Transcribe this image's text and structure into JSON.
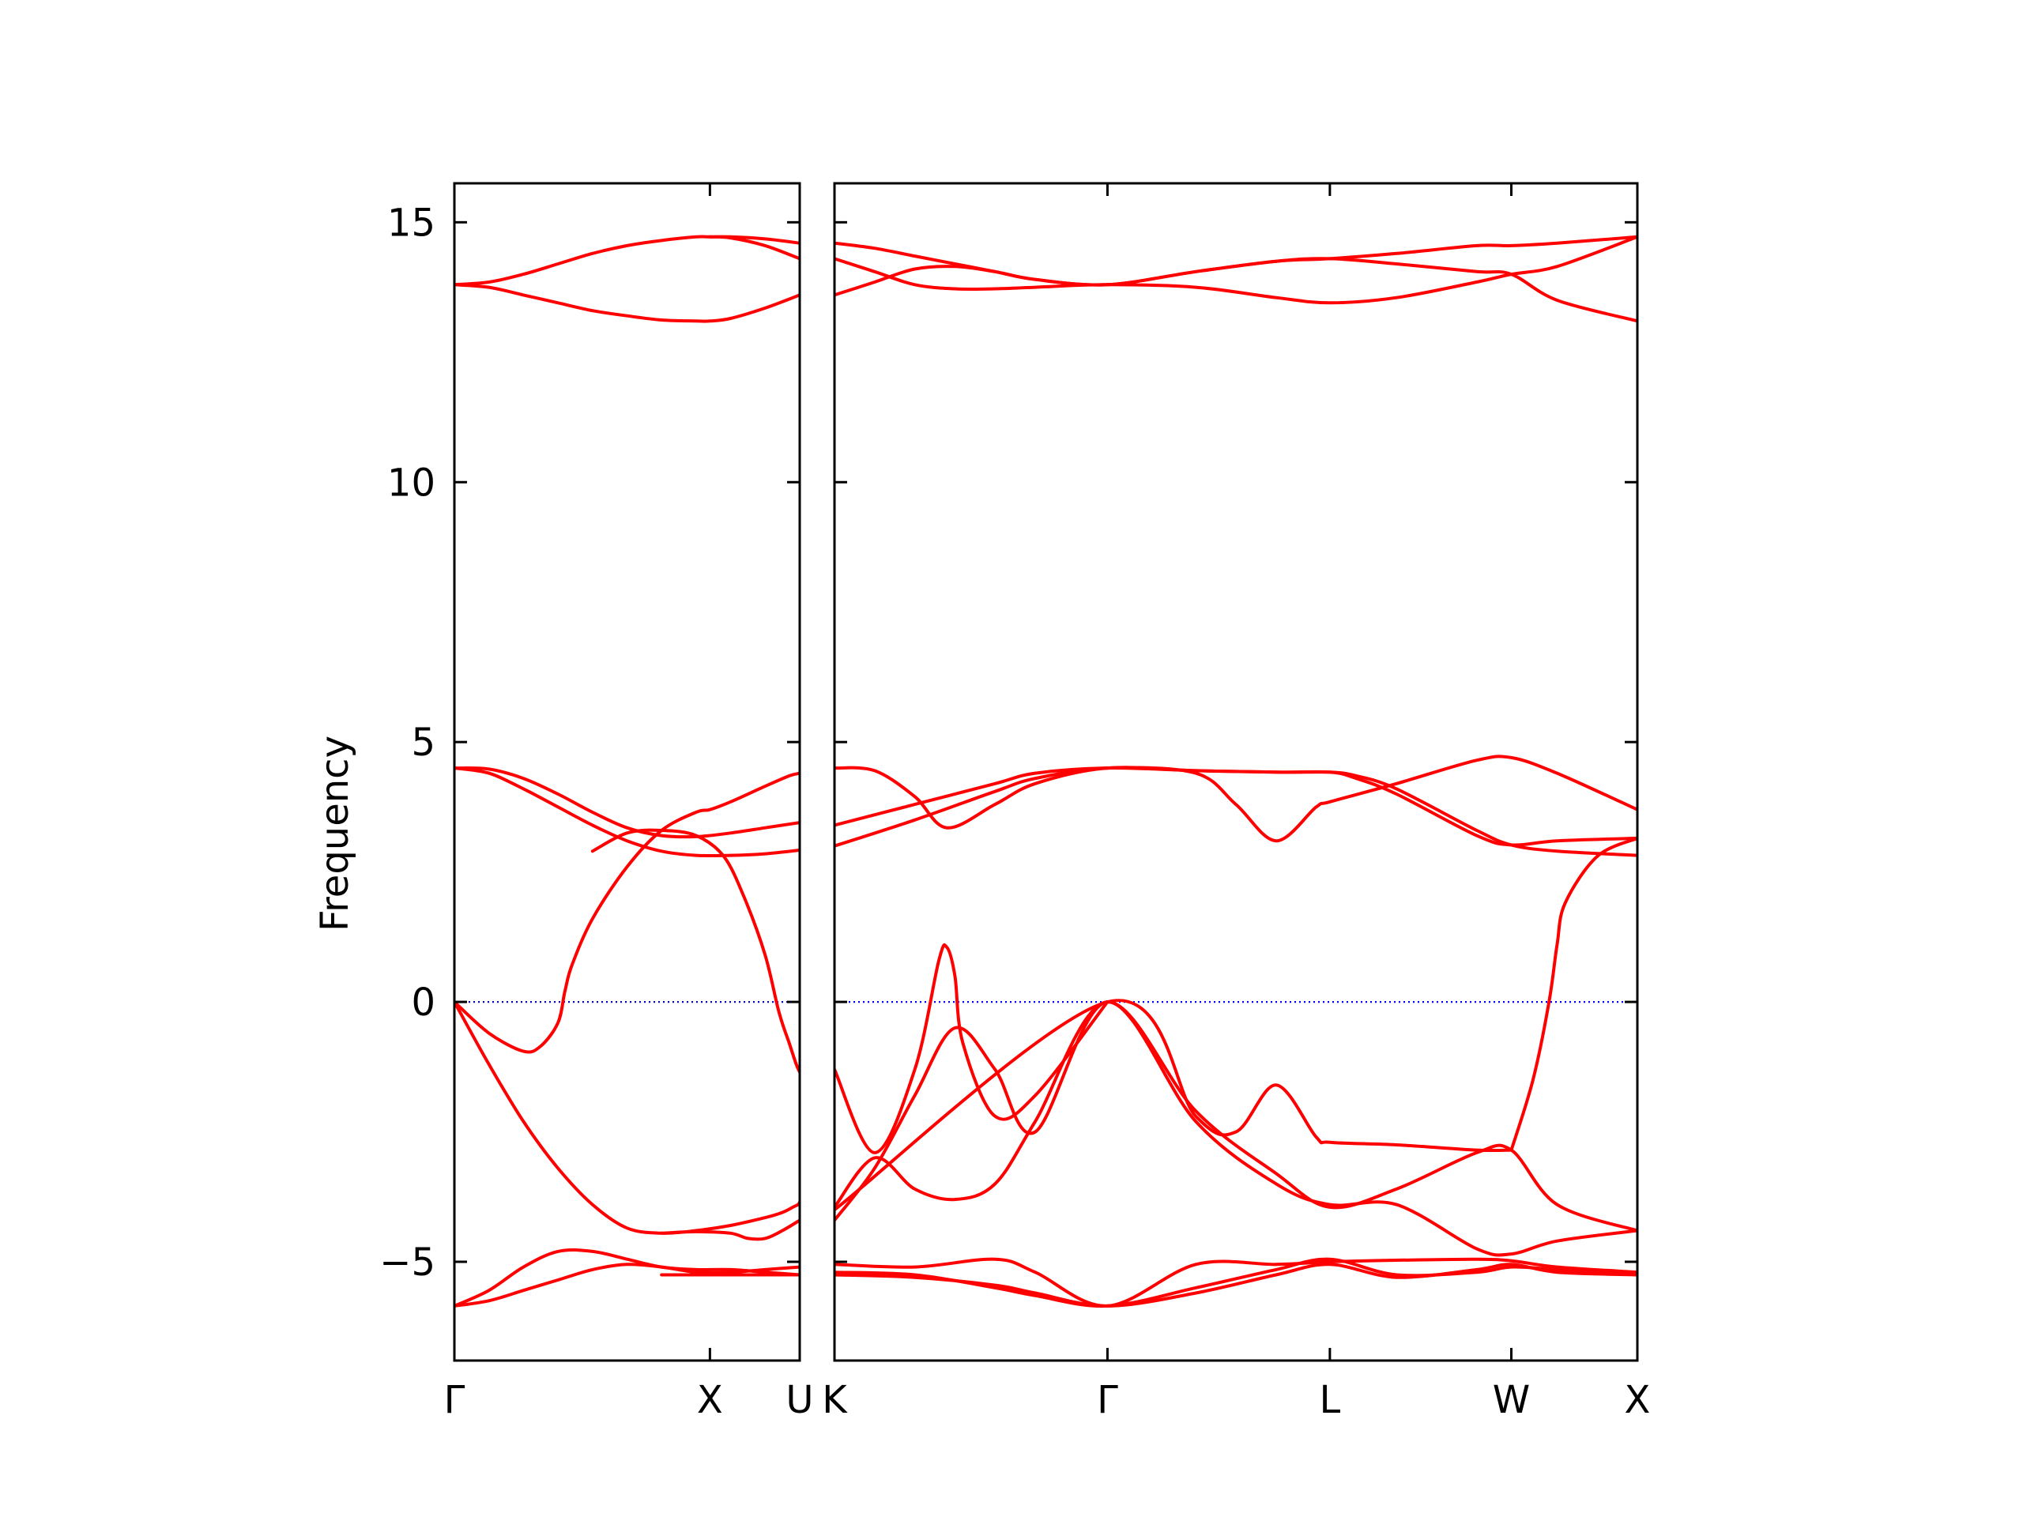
{
  "chart_data": {
    "type": "line",
    "title": "",
    "ylabel": "Frequency",
    "xlabel": "",
    "ylim": [
      -6.9,
      15.75
    ],
    "yticks": [
      -5,
      0,
      5,
      10,
      15
    ],
    "ytick_labels": [
      "−5",
      "0",
      "5",
      "10",
      "15"
    ],
    "grid": false,
    "legend": "none",
    "zero_line": {
      "y": 0,
      "style": "dotted",
      "color": "#0000ff"
    },
    "line_color": "#ff0000",
    "panels": [
      {
        "name": "left",
        "xlim": [
          0,
          1
        ],
        "high_symmetry_points": [
          {
            "label": "Γ",
            "x": 0
          },
          {
            "label": "X",
            "x": 0.74
          },
          {
            "label": "U",
            "x": 1
          }
        ],
        "bands": [
          {
            "x": [
              0,
              0.1,
              0.2,
              0.3,
              0.4,
              0.5,
              0.6,
              0.7,
              0.74,
              0.8,
              0.9,
              1.0
            ],
            "y": [
              13.8,
              13.85,
              14.0,
              14.2,
              14.4,
              14.55,
              14.65,
              14.72,
              14.72,
              14.72,
              14.68,
              14.6
            ]
          },
          {
            "x": [
              0,
              0.1,
              0.2,
              0.3,
              0.4,
              0.5,
              0.6,
              0.7,
              0.74,
              0.8,
              0.9,
              1.0
            ],
            "y": [
              13.8,
              13.75,
              13.6,
              13.45,
              13.3,
              13.2,
              13.12,
              13.1,
              13.1,
              13.15,
              13.35,
              13.6
            ]
          },
          {
            "x": [
              0.74,
              0.8,
              0.9,
              1.0
            ],
            "y": [
              14.72,
              14.7,
              14.55,
              14.3
            ]
          },
          {
            "x": [
              0,
              0.1,
              0.2,
              0.3,
              0.4,
              0.5,
              0.6,
              0.7,
              0.8,
              0.9,
              1.0
            ],
            "y": [
              4.5,
              4.48,
              4.3,
              4.0,
              3.65,
              3.35,
              3.2,
              3.18,
              3.25,
              3.35,
              3.45
            ]
          },
          {
            "x": [
              0,
              0.1,
              0.2,
              0.3,
              0.4,
              0.5,
              0.6,
              0.7,
              0.8,
              0.9,
              1.0
            ],
            "y": [
              4.5,
              4.4,
              4.1,
              3.75,
              3.4,
              3.1,
              2.9,
              2.82,
              2.82,
              2.85,
              2.92
            ]
          },
          {
            "x": [
              0,
              0.1,
              0.2,
              0.25,
              0.3,
              0.32,
              0.34,
              0.4,
              0.5,
              0.6,
              0.7,
              0.74,
              0.8,
              0.9,
              0.97,
              1.0
            ],
            "y": [
              0,
              -0.6,
              -0.95,
              -0.85,
              -0.4,
              0.2,
              0.7,
              1.6,
              2.6,
              3.3,
              3.65,
              3.7,
              3.85,
              4.15,
              4.35,
              4.4
            ]
          },
          {
            "x": [
              0,
              0.1,
              0.2,
              0.3,
              0.4,
              0.5,
              0.6,
              0.7,
              0.8,
              0.9,
              0.95,
              0.98,
              0.995,
              1.0
            ],
            "y": [
              0,
              -1.2,
              -2.3,
              -3.2,
              -3.9,
              -4.35,
              -4.45,
              -4.4,
              -4.3,
              -4.15,
              -4.05,
              -3.95,
              -3.9,
              -3.85
            ]
          },
          {
            "x": [
              0.4,
              0.5,
              0.6,
              0.7,
              0.78,
              0.84,
              0.9,
              0.94,
              0.97,
              0.99,
              1.0
            ],
            "y": [
              2.9,
              3.25,
              3.3,
              3.2,
              2.8,
              2.0,
              0.9,
              -0.2,
              -0.8,
              -1.2,
              -1.35
            ]
          },
          {
            "x": [
              0.6,
              0.7,
              0.8,
              0.85,
              0.9,
              0.95,
              1.0
            ],
            "y": [
              -4.45,
              -4.42,
              -4.45,
              -4.55,
              -4.55,
              -4.4,
              -4.2
            ]
          },
          {
            "x": [
              0,
              0.1,
              0.2,
              0.3,
              0.4,
              0.5,
              0.6,
              0.7,
              0.8,
              0.9,
              1.0
            ],
            "y": [
              -5.85,
              -5.55,
              -5.1,
              -4.8,
              -4.8,
              -4.95,
              -5.1,
              -5.15,
              -5.15,
              -5.2,
              -5.25
            ]
          },
          {
            "x": [
              0,
              0.1,
              0.2,
              0.3,
              0.4,
              0.5,
              0.6,
              0.7,
              0.8,
              0.9,
              1.0
            ],
            "y": [
              -5.85,
              -5.75,
              -5.55,
              -5.35,
              -5.15,
              -5.05,
              -5.1,
              -5.2,
              -5.2,
              -5.15,
              -5.1
            ]
          },
          {
            "x": [
              0.6,
              0.7,
              0.8,
              0.9,
              1.0
            ],
            "y": [
              -5.25,
              -5.25,
              -5.25,
              -5.25,
              -5.25
            ]
          }
        ]
      },
      {
        "name": "right",
        "xlim": [
          0,
          1
        ],
        "high_symmetry_points": [
          {
            "label": "K",
            "x": 0
          },
          {
            "label": "Γ",
            "x": 0.34
          },
          {
            "label": "L",
            "x": 0.617
          },
          {
            "label": "W",
            "x": 0.843
          },
          {
            "label": "X",
            "x": 1
          }
        ],
        "bands": [
          {
            "x": [
              0,
              0.05,
              0.1,
              0.15,
              0.2,
              0.25,
              0.34,
              0.45,
              0.55,
              0.617,
              0.7,
              0.8,
              0.843,
              0.9,
              1.0
            ],
            "y": [
              14.6,
              14.5,
              14.35,
              14.2,
              14.05,
              13.9,
              13.8,
              14.05,
              14.25,
              14.3,
              14.4,
              14.55,
              14.55,
              14.6,
              14.72
            ]
          },
          {
            "x": [
              0,
              0.05,
              0.1,
              0.15,
              0.2,
              0.25,
              0.34,
              0.45,
              0.55,
              0.617,
              0.7,
              0.8,
              0.843,
              0.9,
              1.0
            ],
            "y": [
              14.3,
              14.05,
              13.8,
              13.72,
              13.72,
              13.75,
              13.8,
              13.75,
              13.55,
              13.45,
              13.55,
              13.85,
              14.0,
              14.15,
              14.72
            ]
          },
          {
            "x": [
              0,
              0.05,
              0.1,
              0.15,
              0.2,
              0.25,
              0.34,
              0.45,
              0.55,
              0.617,
              0.7,
              0.8,
              0.843,
              0.9,
              1.0
            ],
            "y": [
              13.6,
              13.85,
              14.1,
              14.15,
              14.05,
              13.9,
              13.8,
              14.05,
              14.25,
              14.3,
              14.2,
              14.05,
              14.0,
              13.5,
              13.1
            ]
          },
          {
            "x": [
              0,
              0.05,
              0.1,
              0.14,
              0.2,
              0.25,
              0.34,
              0.45,
              0.55,
              0.617,
              0.65,
              0.7,
              0.8,
              0.843,
              0.9,
              1.0
            ],
            "y": [
              4.5,
              4.45,
              3.95,
              3.35,
              3.8,
              4.2,
              4.5,
              4.45,
              4.42,
              4.42,
              4.3,
              4.0,
              3.2,
              3.02,
              3.1,
              3.15
            ]
          },
          {
            "x": [
              0,
              0.1,
              0.2,
              0.25,
              0.34,
              0.45,
              0.55,
              0.617,
              0.65,
              0.7,
              0.8,
              0.843,
              0.9,
              1.0
            ],
            "y": [
              3.4,
              3.8,
              4.2,
              4.4,
              4.5,
              4.45,
              4.42,
              4.42,
              4.35,
              4.1,
              3.3,
              3.02,
              2.9,
              2.82
            ]
          },
          {
            "x": [
              0,
              0.1,
              0.2,
              0.25,
              0.34,
              0.45,
              0.5,
              0.55,
              0.6,
              0.617,
              0.7,
              0.8,
              0.843,
              0.9,
              1.0
            ],
            "y": [
              3.0,
              3.5,
              4.05,
              4.3,
              4.5,
              4.4,
              3.8,
              3.1,
              3.75,
              3.85,
              4.2,
              4.65,
              4.7,
              4.4,
              3.7
            ]
          },
          {
            "x": [
              0,
              0.34,
              0.45,
              0.5,
              0.55,
              0.6,
              0.617,
              0.7,
              0.8,
              0.843
            ],
            "y": [
              -4.0,
              0,
              -2.2,
              -2.5,
              -1.6,
              -2.6,
              -2.7,
              -2.75,
              -2.85,
              -2.85
            ]
          },
          {
            "x": [
              0,
              0.05,
              0.1,
              0.13,
              0.14,
              0.15,
              0.16,
              0.2,
              0.25,
              0.34
            ],
            "y": [
              -1.3,
              -2.9,
              -1.3,
              0.8,
              1.05,
              0.5,
              -0.8,
              -2.2,
              -1.8,
              0
            ]
          },
          {
            "x": [
              0,
              0.05,
              0.1,
              0.15,
              0.2,
              0.25,
              0.34,
              0.45,
              0.55,
              0.617,
              0.7,
              0.8,
              0.843,
              0.9,
              1.0
            ],
            "y": [
              -4.2,
              -3.2,
              -1.8,
              -0.5,
              -1.3,
              -2.5,
              0,
              -2.3,
              -3.5,
              -3.9,
              -3.9,
              -4.75,
              -4.85,
              -4.6,
              -4.4
            ]
          },
          {
            "x": [
              0,
              0.05,
              0.1,
              0.15,
              0.2,
              0.25,
              0.34,
              0.45,
              0.55,
              0.617,
              0.7,
              0.8,
              0.843,
              0.9,
              1.0
            ],
            "y": [
              -3.95,
              -3.0,
              -3.6,
              -3.8,
              -3.5,
              -2.3,
              0,
              -2.1,
              -3.3,
              -3.95,
              -3.6,
              -2.9,
              -2.85,
              -3.9,
              -4.4
            ]
          },
          {
            "x": [
              0.843,
              0.87,
              0.89,
              0.9,
              0.91,
              0.95,
              1.0
            ],
            "y": [
              -2.85,
              -1.5,
              0,
              1.1,
              1.9,
              2.8,
              3.15
            ]
          },
          {
            "x": [
              0,
              0.1,
              0.2,
              0.25,
              0.34,
              0.45,
              0.55,
              0.617,
              0.7,
              0.8,
              0.843,
              0.9,
              1.0
            ],
            "y": [
              -5.05,
              -5.1,
              -4.95,
              -5.2,
              -5.85,
              -5.05,
              -5.05,
              -5.0,
              -4.97,
              -4.95,
              -4.98,
              -5.1,
              -5.2
            ]
          },
          {
            "x": [
              0,
              0.1,
              0.2,
              0.25,
              0.34,
              0.45,
              0.55,
              0.617,
              0.7,
              0.8,
              0.843,
              0.9,
              1.0
            ],
            "y": [
              -5.2,
              -5.25,
              -5.5,
              -5.65,
              -5.85,
              -5.5,
              -5.15,
              -4.95,
              -5.25,
              -5.2,
              -5.1,
              -5.15,
              -5.25
            ]
          },
          {
            "x": [
              0,
              0.1,
              0.2,
              0.25,
              0.34,
              0.45,
              0.55,
              0.617,
              0.7,
              0.8,
              0.843,
              0.9,
              1.0
            ],
            "y": [
              -5.25,
              -5.3,
              -5.45,
              -5.6,
              -5.85,
              -5.6,
              -5.25,
              -5.05,
              -5.3,
              -5.15,
              -5.05,
              -5.2,
              -5.25
            ]
          }
        ]
      }
    ]
  }
}
